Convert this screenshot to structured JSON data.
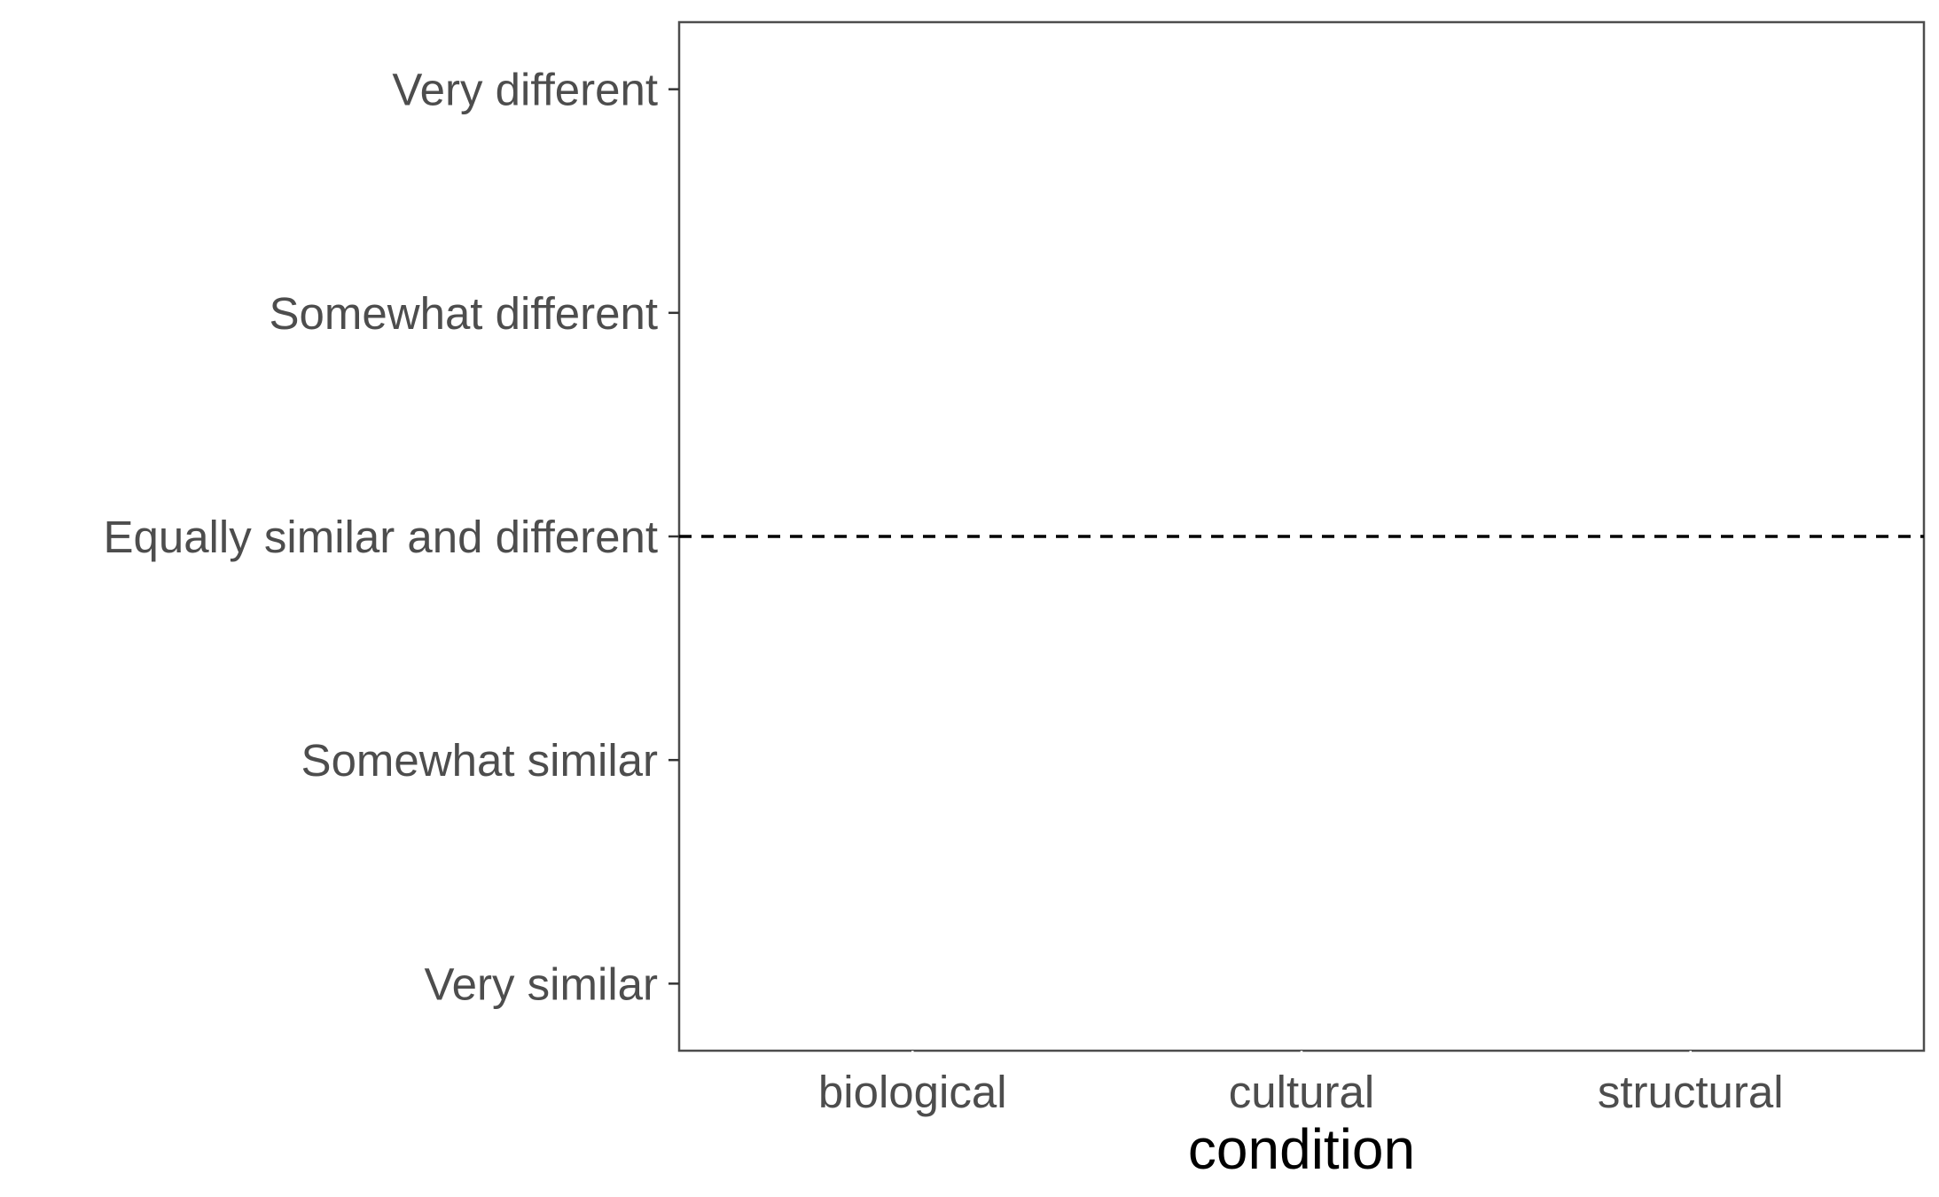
{
  "chart_data": {
    "type": "scatter",
    "xlabel": "condition",
    "ylabel": "",
    "categories": [
      "biological",
      "cultural",
      "structural"
    ],
    "y_levels": [
      "Very similar",
      "Somewhat similar",
      "Equally similar and different",
      "Somewhat different",
      "Very different"
    ],
    "ylim": [
      0.7,
      5.3
    ],
    "reference_line": {
      "y": 3,
      "style": "dashed",
      "color": "#000000"
    },
    "series": [],
    "grid": false,
    "legend": "none",
    "colors": {
      "panel_border": "#4d4d4d",
      "tick_text": "#4d4d4d",
      "axis_title": "#000000"
    }
  }
}
